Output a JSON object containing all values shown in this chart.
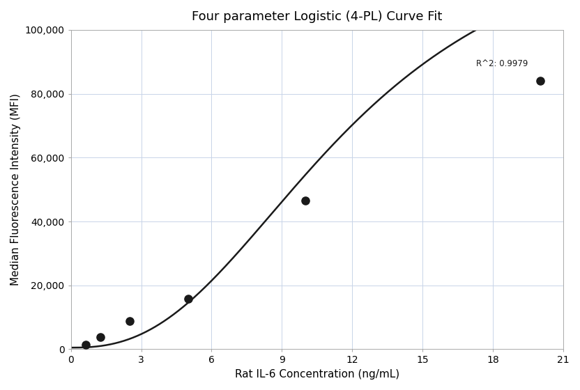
{
  "title": "Four parameter Logistic (4-PL) Curve Fit",
  "xlabel": "Rat IL-6 Concentration (ng/mL)",
  "ylabel": "Median Fluorescence Intensity (MFI)",
  "scatter_x": [
    0.625,
    1.25,
    2.5,
    5.0,
    10.0,
    20.0
  ],
  "scatter_y": [
    1500,
    3800,
    8800,
    15800,
    46500,
    84000
  ],
  "xlim": [
    0,
    21
  ],
  "ylim": [
    0,
    100000
  ],
  "xticks": [
    0,
    3,
    6,
    9,
    12,
    15,
    18,
    21
  ],
  "yticks": [
    0,
    20000,
    40000,
    60000,
    80000,
    100000
  ],
  "ytick_labels": [
    "0",
    "20,000",
    "40,000",
    "60,000",
    "80,000",
    "100,000"
  ],
  "r2_text": "R^2: 0.9979",
  "r2_x": 19.5,
  "r2_y": 88000,
  "curve_color": "#1a1a1a",
  "scatter_color": "#1a1a1a",
  "grid_color": "#c8d4e8",
  "background_color": "#ffffff",
  "title_fontsize": 13,
  "label_fontsize": 11,
  "tick_fontsize": 10,
  "scatter_size": 65,
  "line_width": 1.8,
  "4pl_A": 500,
  "4pl_B": 2.5,
  "4pl_C": 12.0,
  "4pl_D": 140000
}
